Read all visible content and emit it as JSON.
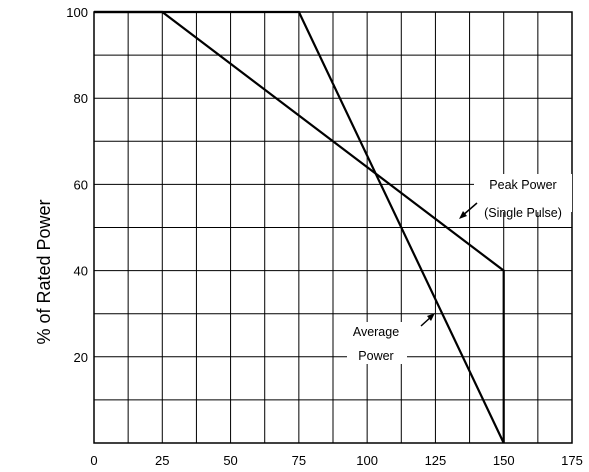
{
  "chart_data": {
    "type": "line",
    "ylabel": "% of Rated Power",
    "xlabel": "",
    "xlim": [
      0,
      175
    ],
    "ylim": [
      0,
      100
    ],
    "x_ticks": [
      0,
      25,
      50,
      75,
      100,
      125,
      150,
      175
    ],
    "y_ticks": [
      20,
      40,
      60,
      80,
      100
    ],
    "grid": true,
    "series": [
      {
        "name": "Peak Power (Single Pulse)",
        "x": [
          0,
          25,
          150,
          150
        ],
        "y": [
          100,
          100,
          40,
          0
        ]
      },
      {
        "name": "Average Power",
        "x": [
          0,
          75,
          150
        ],
        "y": [
          100,
          100,
          0
        ]
      }
    ],
    "annotations": {
      "peak": [
        "Peak Power",
        "(Single Pulse)"
      ],
      "average": [
        "Average",
        "Power"
      ]
    }
  }
}
